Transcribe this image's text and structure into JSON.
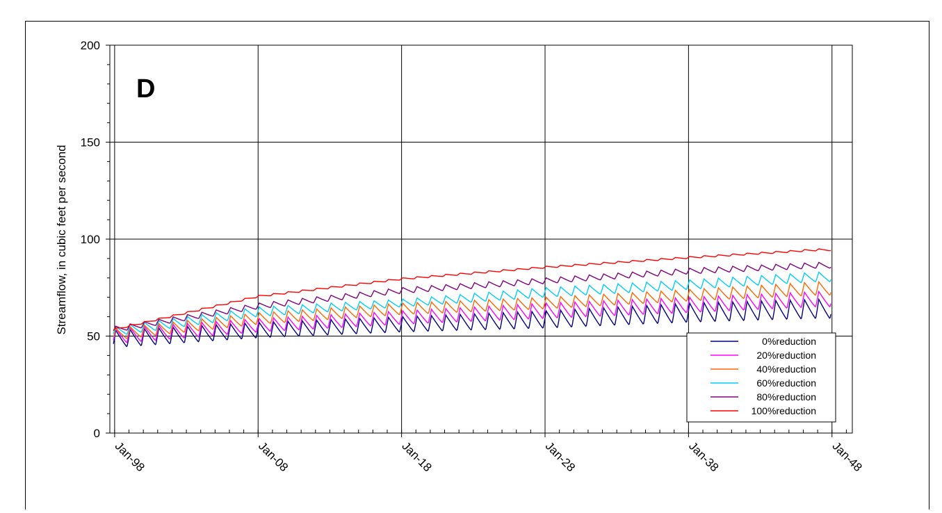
{
  "chart_data": {
    "type": "line",
    "panel_label": "D",
    "ylabel": "Streamflow, in cubic feet per second",
    "xlabel": "",
    "ylim": [
      0,
      200
    ],
    "yticks": [
      0,
      50,
      100,
      150,
      200
    ],
    "xlim": [
      "Sep-97",
      "Jun-49"
    ],
    "xticks": [
      "Jan-98",
      "Jan-08",
      "Jan-18",
      "Jan-28",
      "Jan-38",
      "Jan-48"
    ],
    "minor_ticks": "yearly",
    "grid": true,
    "legend_position": "lower-right",
    "series_shape": "annual sawtooth cycle (peak each winter, trough each fall) on a rising trend; trend and amplitude values below",
    "series": [
      {
        "name": "0%reduction",
        "color": "#000080",
        "base_year": [
          "Jan-98",
          "Jan-08",
          "Jan-18",
          "Jan-28",
          "Jan-38",
          "Jan-47"
        ],
        "base_values": [
          44,
          49,
          52,
          54,
          57,
          59
        ],
        "amplitude": [
          9,
          8,
          8,
          9,
          10,
          10
        ]
      },
      {
        "name": "20%reduction",
        "color": "#ff00ff",
        "base_year": [
          "Jan-98",
          "Jan-08",
          "Jan-18",
          "Jan-28",
          "Jan-38",
          "Jan-47"
        ],
        "base_values": [
          46,
          52,
          56,
          59,
          62,
          65
        ],
        "amplitude": [
          8,
          7,
          7,
          8,
          8,
          8
        ]
      },
      {
        "name": "40%reduction",
        "color": "#ff6600",
        "base_year": [
          "Jan-98",
          "Jan-08",
          "Jan-18",
          "Jan-28",
          "Jan-38",
          "Jan-47"
        ],
        "base_values": [
          48,
          56,
          61,
          64,
          68,
          71
        ],
        "amplitude": [
          6,
          6,
          6,
          6,
          6,
          7
        ]
      },
      {
        "name": "60%reduction",
        "color": "#00ccff",
        "base_year": [
          "Jan-98",
          "Jan-08",
          "Jan-18",
          "Jan-28",
          "Jan-38",
          "Jan-47"
        ],
        "base_values": [
          50,
          60,
          65,
          70,
          74,
          78
        ],
        "amplitude": [
          5,
          5,
          4,
          5,
          5,
          5
        ]
      },
      {
        "name": "80%reduction",
        "color": "#800080",
        "base_year": [
          "Jan-98",
          "Jan-08",
          "Jan-18",
          "Jan-28",
          "Jan-38",
          "Jan-47"
        ],
        "base_values": [
          52,
          64,
          72,
          77,
          82,
          85
        ],
        "amplitude": [
          3,
          3,
          3,
          3,
          3,
          3
        ]
      },
      {
        "name": "100%reduction",
        "color": "#ff0000",
        "base_year": [
          "Jan-98",
          "Jan-08",
          "Jan-18",
          "Jan-28",
          "Jan-38",
          "Jan-47"
        ],
        "base_values": [
          53,
          70,
          79,
          85,
          90,
          94
        ],
        "amplitude": [
          1,
          1,
          1,
          1,
          1,
          1
        ]
      }
    ]
  }
}
